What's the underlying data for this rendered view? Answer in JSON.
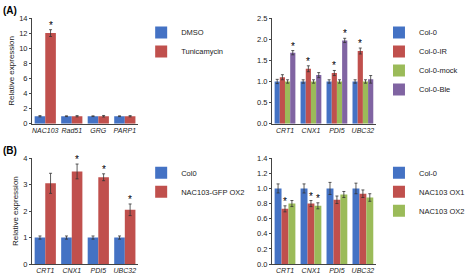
{
  "chart_data": [
    {
      "type": "bar",
      "title": "(A)",
      "categories": [
        "NAC103",
        "Rad51",
        "GRG",
        "PARP1"
      ],
      "series": [
        {
          "name": "DMSO",
          "color": "#4472C4",
          "values": [
            1.0,
            1.0,
            1.0,
            1.0
          ],
          "errors": [
            0.08,
            0.05,
            0.05,
            0.05
          ]
        },
        {
          "name": "Tunicamycin",
          "color": "#C0504D",
          "values": [
            12.0,
            1.0,
            1.0,
            1.0
          ],
          "errors": [
            0.45,
            0.08,
            0.1,
            0.08
          ]
        }
      ],
      "ylabel": "Relative expression",
      "ylim": [
        0,
        14
      ],
      "yticks": [
        0,
        2,
        4,
        6,
        8,
        10,
        12,
        14
      ],
      "grid": false,
      "legend": "right",
      "annotations": [
        {
          "text": "*",
          "category": "NAC103",
          "series": "Tunicamycin"
        }
      ]
    },
    {
      "type": "bar",
      "categories": [
        "CRT1",
        "CNX1",
        "PDI5",
        "UBC32"
      ],
      "series": [
        {
          "name": "Col-0",
          "color": "#4472C4",
          "values": [
            1.0,
            1.0,
            1.0,
            1.0
          ],
          "errors": [
            0.05,
            0.04,
            0.04,
            0.04
          ]
        },
        {
          "name": "Col-0-IR",
          "color": "#C0504D",
          "values": [
            1.1,
            1.3,
            1.2,
            1.72
          ],
          "errors": [
            0.06,
            0.07,
            0.06,
            0.07
          ]
        },
        {
          "name": "Col-0-mock",
          "color": "#9BBB59",
          "values": [
            1.0,
            1.0,
            1.0,
            1.0
          ],
          "errors": [
            0.04,
            0.04,
            0.04,
            0.04
          ]
        },
        {
          "name": "Col-0-Ble",
          "color": "#8064A2",
          "values": [
            1.68,
            1.15,
            1.97,
            1.05
          ],
          "errors": [
            0.05,
            0.06,
            0.05,
            0.09
          ]
        }
      ],
      "ylim": [
        0,
        2.5
      ],
      "yticks": [
        {
          "value": 0,
          "label": "0.0"
        },
        0.5,
        {
          "value": 1,
          "label": "1.0"
        },
        1.5,
        {
          "value": 2,
          "label": "2.0"
        },
        2.5
      ],
      "grid": false,
      "legend": "right",
      "annotations": [
        {
          "text": "*",
          "category": "CNX1",
          "series": "Col-0-IR"
        },
        {
          "text": "*",
          "category": "PDI5",
          "series": "Col-0-IR"
        },
        {
          "text": "*",
          "category": "UBC32",
          "series": "Col-0-IR"
        },
        {
          "text": "*",
          "category": "CRT1",
          "series": "Col-0-Ble"
        },
        {
          "text": "*",
          "category": "PDI5",
          "series": "Col-0-Ble"
        }
      ]
    },
    {
      "type": "bar",
      "title": "(B)",
      "categories": [
        "CRT1",
        "CNX1",
        "PDI5",
        "UBC32"
      ],
      "series": [
        {
          "name": "Col0",
          "color": "#4472C4",
          "values": [
            1.0,
            1.0,
            1.0,
            1.0
          ],
          "errors": [
            0.06,
            0.06,
            0.06,
            0.06
          ]
        },
        {
          "name": "NAC103-GFP OX2",
          "color": "#C0504D",
          "values": [
            3.05,
            3.5,
            3.28,
            2.05
          ],
          "errors": [
            0.38,
            0.28,
            0.13,
            0.22
          ]
        }
      ],
      "ylabel": "Relative expression",
      "ylim": [
        0,
        4
      ],
      "yticks": [
        0,
        1,
        2,
        3,
        4
      ],
      "grid": false,
      "legend": "right",
      "annotations": [
        {
          "text": "*",
          "category": "CNX1",
          "series": "NAC103-GFP OX2"
        },
        {
          "text": "*",
          "category": "PDI5",
          "series": "NAC103-GFP OX2"
        },
        {
          "text": "*",
          "category": "UBC32",
          "series": "NAC103-GFP OX2"
        }
      ]
    },
    {
      "type": "bar",
      "categories": [
        "CRT1",
        "CNX1",
        "PDI5",
        "UBC32"
      ],
      "series": [
        {
          "name": "Col-0",
          "color": "#4472C4",
          "values": [
            1.0,
            1.0,
            1.0,
            1.0
          ],
          "errors": [
            0.06,
            0.06,
            0.08,
            0.07
          ]
        },
        {
          "name": "NAC103 OX1",
          "color": "#C0504D",
          "values": [
            0.73,
            0.8,
            0.85,
            0.93
          ],
          "errors": [
            0.04,
            0.04,
            0.05,
            0.05
          ]
        },
        {
          "name": "NAC103 OX2",
          "color": "#9BBB59",
          "values": [
            0.8,
            0.77,
            0.92,
            0.88
          ],
          "errors": [
            0.04,
            0.04,
            0.04,
            0.05
          ]
        }
      ],
      "ylim": [
        0,
        1.4
      ],
      "yticks": [
        {
          "value": 0,
          "label": "0.0"
        },
        0.2,
        0.4,
        0.6,
        0.8,
        {
          "value": 1,
          "label": "1.0"
        },
        1.2,
        1.4
      ],
      "grid": false,
      "legend": "right",
      "annotations": [
        {
          "text": "*",
          "category": "CRT1",
          "series": "NAC103 OX1"
        },
        {
          "text": "*",
          "category": "CNX1",
          "series": "NAC103 OX1"
        },
        {
          "text": "*",
          "category": "CNX1",
          "series": "NAC103 OX2"
        }
      ]
    }
  ]
}
